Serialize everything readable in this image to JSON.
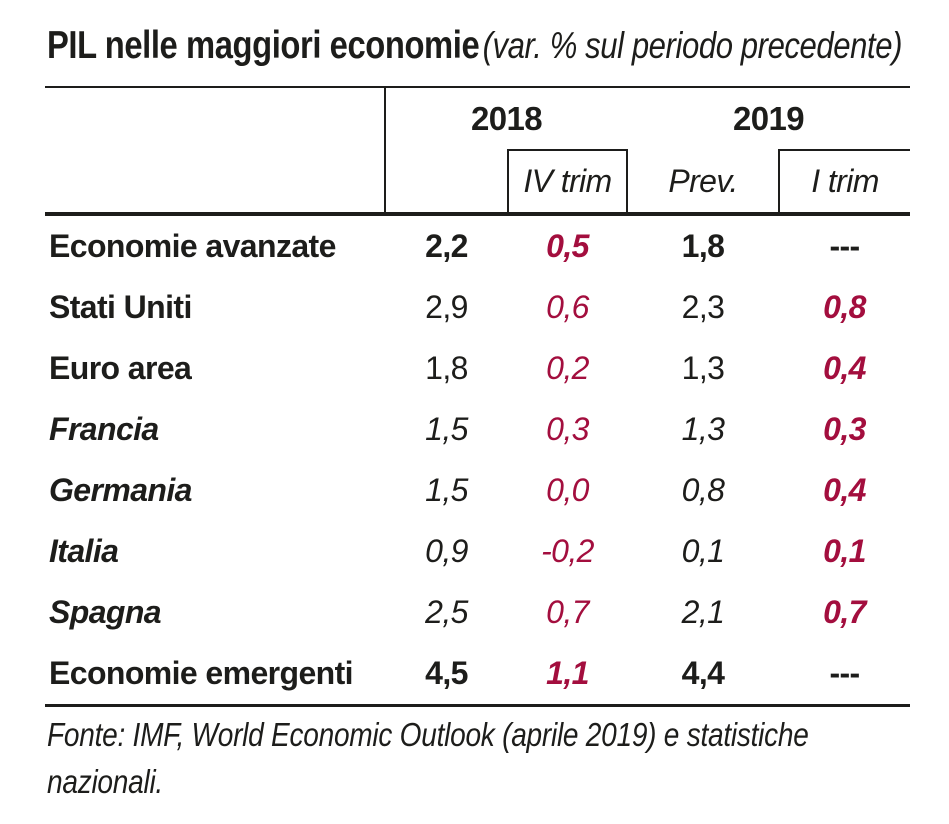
{
  "title": {
    "main": "PIL nelle maggiori economie",
    "subtitle": "(var. % sul periodo precedente)"
  },
  "chart_data": {
    "type": "table",
    "title": "PIL nelle maggiori economie",
    "subtitle": "(var. % sul periodo precedente)",
    "column_groups": [
      "2018",
      "2019"
    ],
    "columns": [
      "2018",
      "IV trim",
      "Prev.",
      "I trim"
    ],
    "rows": [
      {
        "label": "Economie avanzate",
        "values": [
          "2,2",
          "0,5",
          "1,8",
          "---"
        ]
      },
      {
        "label": "Stati Uniti",
        "values": [
          "2,9",
          "0,6",
          "2,3",
          "0,8"
        ]
      },
      {
        "label": "Euro area",
        "values": [
          "1,8",
          "0,2",
          "1,3",
          "0,4"
        ]
      },
      {
        "label": "Francia",
        "values": [
          "1,5",
          "0,3",
          "1,3",
          "0,3"
        ]
      },
      {
        "label": "Germania",
        "values": [
          "1,5",
          "0,0",
          "0,8",
          "0,4"
        ]
      },
      {
        "label": "Italia",
        "values": [
          "0,9",
          "-0,2",
          "0,1",
          "0,1"
        ]
      },
      {
        "label": "Spagna",
        "values": [
          "2,5",
          "0,7",
          "2,1",
          "0,7"
        ]
      },
      {
        "label": "Economie emergenti",
        "values": [
          "4,5",
          "1,1",
          "4,4",
          "---"
        ]
      }
    ],
    "source": "Fonte: IMF, World Economic Outlook (aprile 2019) e statistiche nazionali.",
    "layout_hints": {
      "quarterly_columns_color": "accent_red",
      "grid": "horizontal rules only: thin top, thick below header, thick bottom"
    }
  },
  "colors": {
    "accent_red": "#a30e3e",
    "text_black": "#1d1d1b",
    "background": "#ffffff"
  }
}
